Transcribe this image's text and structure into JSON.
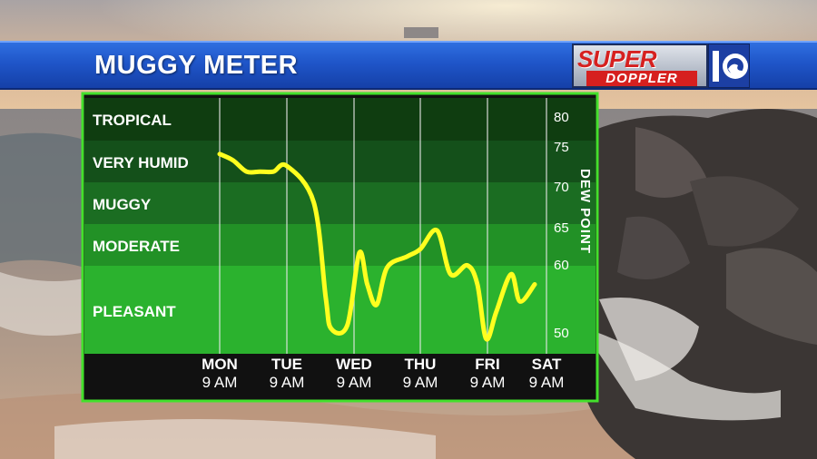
{
  "header": {
    "title": "MUGGY METER",
    "logo": {
      "line1": "SUPER",
      "line2": "DOPPLER",
      "mark": "10"
    }
  },
  "chart_data": {
    "type": "line",
    "categories": [
      {
        "day": "MON",
        "time": "9 AM"
      },
      {
        "day": "TUE",
        "time": "9 AM"
      },
      {
        "day": "WED",
        "time": "9 AM"
      },
      {
        "day": "THU",
        "time": "9 AM"
      },
      {
        "day": "FRI",
        "time": "9 AM"
      },
      {
        "day": "SAT",
        "time": "9 AM"
      }
    ],
    "ylabel": "DEW POINT",
    "yticks": [
      "80",
      "75",
      "70",
      "65",
      "60",
      "50"
    ],
    "zones": [
      "TROPICAL",
      "VERY HUMID",
      "MUGGY",
      "MODERATE",
      "PLEASANT"
    ],
    "line_color": "#ffff1f",
    "values_description_days": [
      {
        "day_index": 0.0,
        "value": 74
      },
      {
        "day_index": 0.2,
        "value": 73.2
      },
      {
        "day_index": 0.4,
        "value": 71.8
      },
      {
        "day_index": 0.6,
        "value": 71.8
      },
      {
        "day_index": 0.8,
        "value": 71.8
      },
      {
        "day_index": 1.0,
        "value": 72.5
      },
      {
        "day_index": 1.4,
        "value": 68
      },
      {
        "day_index": 1.58,
        "value": 55
      },
      {
        "day_index": 1.66,
        "value": 50.5
      },
      {
        "day_index": 1.9,
        "value": 51
      },
      {
        "day_index": 2.08,
        "value": 61.5
      },
      {
        "day_index": 2.2,
        "value": 57
      },
      {
        "day_index": 2.34,
        "value": 54
      },
      {
        "day_index": 2.5,
        "value": 59.5
      },
      {
        "day_index": 2.8,
        "value": 61
      },
      {
        "day_index": 3.0,
        "value": 62
      },
      {
        "day_index": 3.25,
        "value": 64.5
      },
      {
        "day_index": 3.45,
        "value": 58.5
      },
      {
        "day_index": 3.7,
        "value": 59.8
      },
      {
        "day_index": 3.85,
        "value": 57
      },
      {
        "day_index": 3.98,
        "value": 49
      },
      {
        "day_index": 4.15,
        "value": 53
      },
      {
        "day_index": 4.4,
        "value": 58.5
      },
      {
        "day_index": 4.55,
        "value": 54.5
      },
      {
        "day_index": 4.8,
        "value": 57
      }
    ]
  }
}
